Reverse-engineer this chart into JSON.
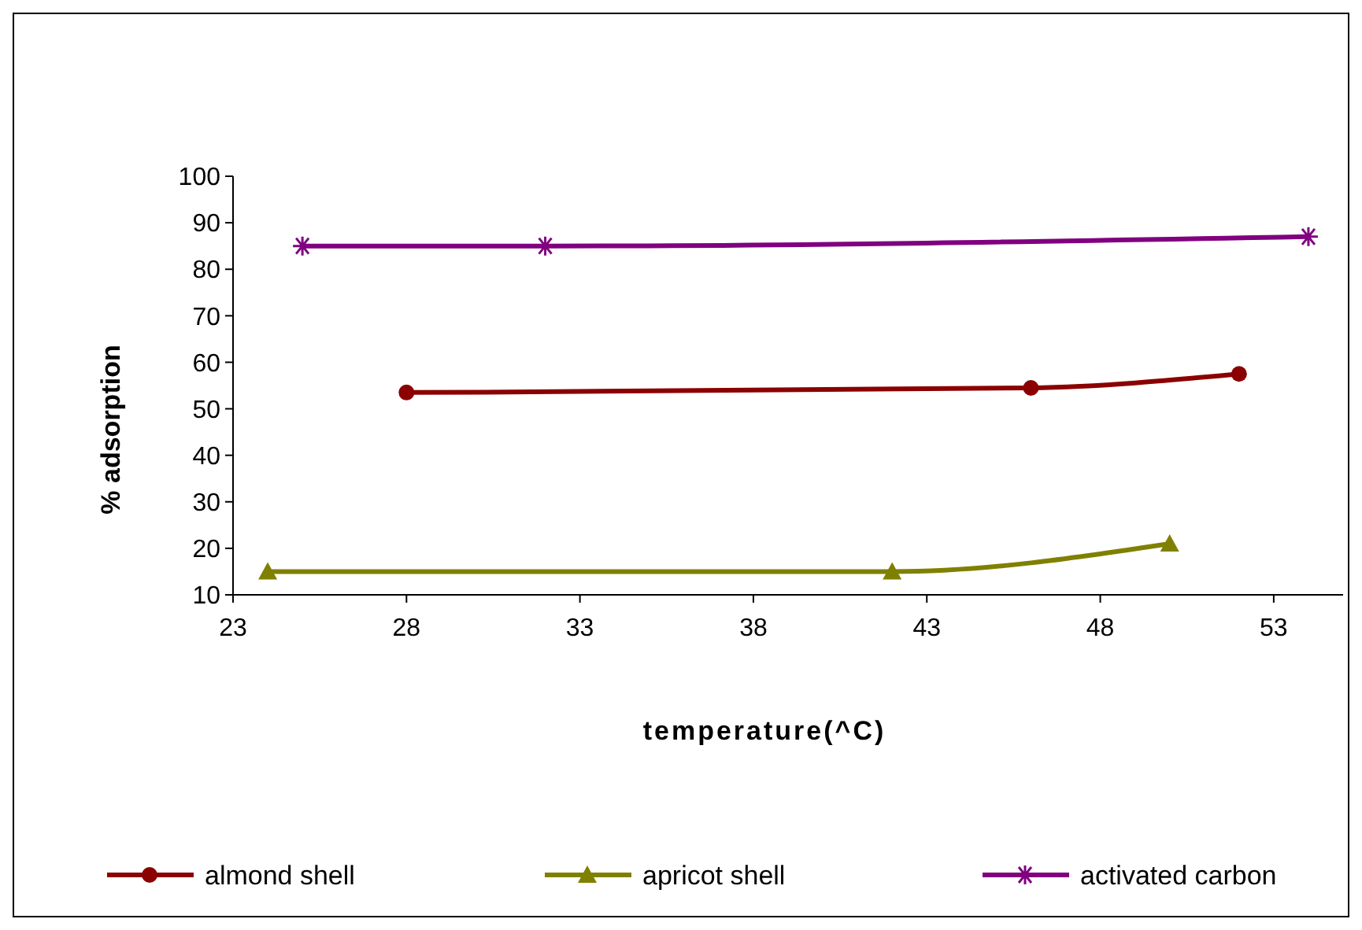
{
  "chart_data": {
    "type": "line",
    "xlabel": "temperature(^C)",
    "ylabel": "% adsorption",
    "xlim": [
      23,
      55
    ],
    "xticks": [
      23,
      28,
      33,
      38,
      43,
      48,
      53
    ],
    "ylim": [
      10,
      100
    ],
    "yticks": [
      10,
      20,
      30,
      40,
      50,
      60,
      70,
      80,
      90,
      100
    ],
    "grid": false,
    "legend": "bottom",
    "line_style": "solid",
    "series": [
      {
        "name": "almond shell",
        "color": "#8b0000",
        "marker": "circle",
        "x": [
          28,
          46,
          52
        ],
        "values": [
          53.5,
          54.5,
          57.5
        ]
      },
      {
        "name": "apricot shell",
        "color": "#808000",
        "marker": "triangle",
        "x": [
          24,
          42,
          50
        ],
        "values": [
          15,
          15,
          21
        ]
      },
      {
        "name": "activated carbon",
        "color": "#800080",
        "marker": "cross",
        "x": [
          25,
          32,
          54
        ],
        "values": [
          85,
          85,
          87
        ]
      }
    ]
  }
}
